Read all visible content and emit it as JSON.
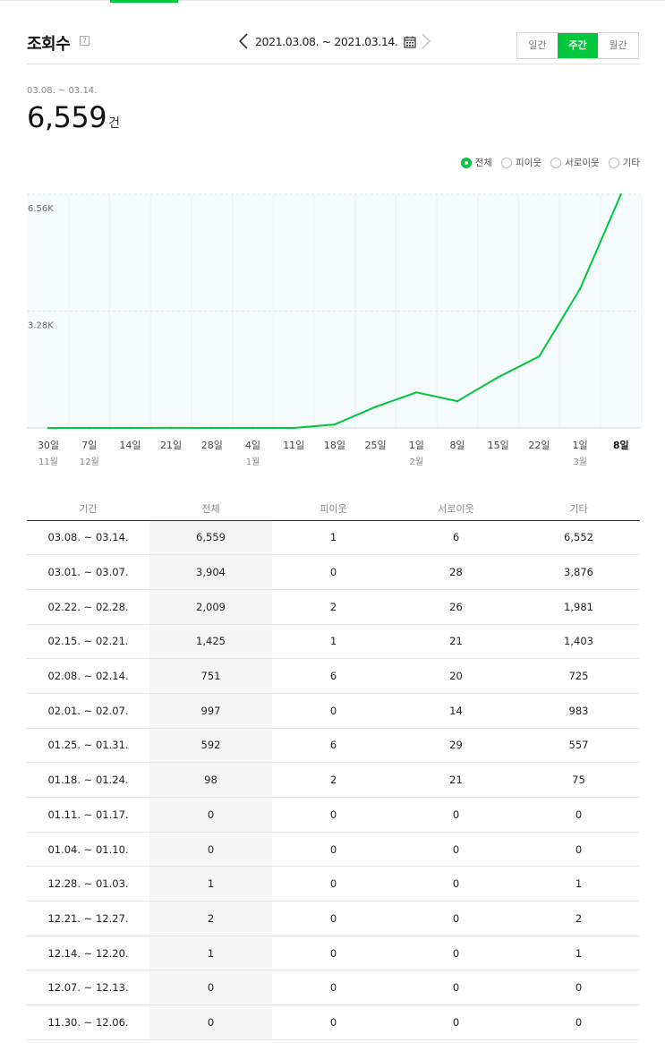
{
  "header": {
    "title": "조회수",
    "help": "?",
    "date_range": "2021.03.08. ~ 2021.03.14.",
    "periods": [
      "일간",
      "주간",
      "월간"
    ],
    "active_period": "주간"
  },
  "summary": {
    "range": "03.08. ~ 03.14.",
    "total": "6,559",
    "unit": "건"
  },
  "filters": [
    {
      "label": "전체",
      "selected": true
    },
    {
      "label": "피이웃",
      "selected": false
    },
    {
      "label": "서로이웃",
      "selected": false
    },
    {
      "label": "기타",
      "selected": false
    }
  ],
  "colors": {
    "accent": "#00c73c",
    "chart_fill": "#f6fbfd"
  },
  "chart_data": {
    "type": "line",
    "x": [
      "30일",
      "7일",
      "14일",
      "21일",
      "28일",
      "4일",
      "11일",
      "18일",
      "25일",
      "1일",
      "8일",
      "15일",
      "22일",
      "1일",
      "8일"
    ],
    "x_month_labels": [
      "11월",
      "12월",
      "",
      "",
      "",
      "1월",
      "",
      "",
      "",
      "2월",
      "",
      "",
      "",
      "3월",
      ""
    ],
    "series": [
      {
        "values": [
          0,
          0,
          1,
          2,
          1,
          0,
          0,
          98,
          592,
          997,
          751,
          1425,
          2009,
          3904,
          6559
        ]
      }
    ],
    "yticks": [
      "3.28K",
      "6.56K"
    ],
    "ytick_values": [
      3280,
      6560
    ],
    "ylim": [
      0,
      6560
    ],
    "grid": true
  },
  "table": {
    "headers": [
      "기간",
      "전체",
      "피이웃",
      "서로이웃",
      "기타"
    ],
    "rows": [
      [
        "03.08. ~ 03.14.",
        "6,559",
        "1",
        "6",
        "6,552"
      ],
      [
        "03.01. ~ 03.07.",
        "3,904",
        "0",
        "28",
        "3,876"
      ],
      [
        "02.22. ~ 02.28.",
        "2,009",
        "2",
        "26",
        "1,981"
      ],
      [
        "02.15. ~ 02.21.",
        "1,425",
        "1",
        "21",
        "1,403"
      ],
      [
        "02.08. ~ 02.14.",
        "751",
        "6",
        "20",
        "725"
      ],
      [
        "02.01. ~ 02.07.",
        "997",
        "0",
        "14",
        "983"
      ],
      [
        "01.25. ~ 01.31.",
        "592",
        "6",
        "29",
        "557"
      ],
      [
        "01.18. ~ 01.24.",
        "98",
        "2",
        "21",
        "75"
      ],
      [
        "01.11. ~ 01.17.",
        "0",
        "0",
        "0",
        "0"
      ],
      [
        "01.04. ~ 01.10.",
        "0",
        "0",
        "0",
        "0"
      ],
      [
        "12.28. ~ 01.03.",
        "1",
        "0",
        "0",
        "1"
      ],
      [
        "12.21. ~ 12.27.",
        "2",
        "0",
        "0",
        "2"
      ],
      [
        "12.14. ~ 12.20.",
        "1",
        "0",
        "0",
        "1"
      ],
      [
        "12.07. ~ 12.13.",
        "0",
        "0",
        "0",
        "0"
      ],
      [
        "11.30. ~ 12.06.",
        "0",
        "0",
        "0",
        "0"
      ]
    ]
  }
}
